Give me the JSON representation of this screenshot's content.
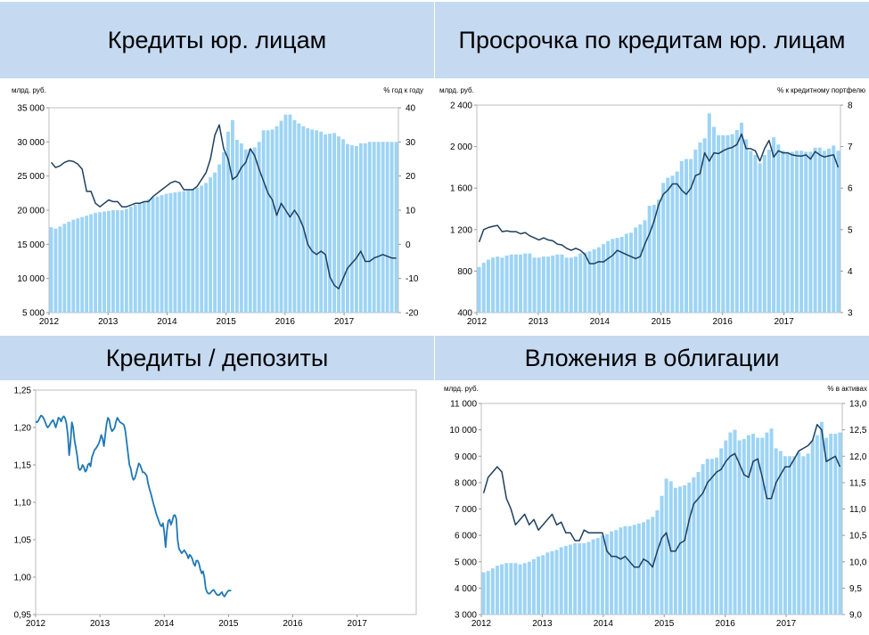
{
  "panels": [
    {
      "title": "Кредиты юр. лицам",
      "chart_data": {
        "type": "bar+line",
        "left_unit": "млрд. руб.",
        "right_unit": "% год к году",
        "x_ticks": [
          "2012",
          "2013",
          "2014",
          "2015",
          "2016",
          "2017"
        ],
        "left_ticks": [
          "5 000",
          "10 000",
          "15 000",
          "20 000",
          "25 000",
          "30 000",
          "35 000"
        ],
        "right_ticks": [
          "-20",
          "-10",
          "0",
          "10",
          "20",
          "30",
          "40"
        ],
        "ylim_left": [
          5000,
          35000
        ],
        "ylim_right": [
          -20,
          40
        ],
        "x_start": 2012.0,
        "x_step": 0.083333,
        "bars": [
          17500,
          17300,
          17600,
          18000,
          18300,
          18600,
          18800,
          19000,
          19200,
          19400,
          19600,
          19700,
          19800,
          19900,
          20000,
          20000,
          20000,
          20200,
          20500,
          20800,
          21100,
          21300,
          21600,
          21900,
          22000,
          22200,
          22400,
          22500,
          22600,
          22700,
          22800,
          22900,
          23100,
          23300,
          23600,
          24000,
          24800,
          25500,
          26700,
          28500,
          31500,
          33200,
          30300,
          29800,
          28900,
          29000,
          29200,
          30000,
          31700,
          31700,
          31800,
          32300,
          33100,
          34000,
          34000,
          33200,
          32700,
          32300,
          32000,
          31800,
          31700,
          31500,
          31100,
          31200,
          31300,
          30800,
          30400,
          29700,
          29500,
          29400,
          29800,
          29800,
          30000,
          30000,
          30000,
          30000,
          30000,
          30000,
          30000
        ],
        "line": [
          24,
          22.5,
          23,
          24,
          24.5,
          24.3,
          23.5,
          22,
          15.5,
          15.5,
          12,
          11,
          12,
          13,
          12.5,
          12.5,
          11,
          11,
          11.5,
          12,
          12,
          12.5,
          12.5,
          14,
          15,
          16,
          17,
          18,
          18.5,
          18,
          16,
          16,
          16,
          17,
          19,
          21,
          25,
          32,
          35,
          28,
          25,
          19,
          20,
          22.5,
          24,
          28,
          26,
          22,
          18.5,
          15,
          13,
          8.5,
          12,
          10,
          8,
          10,
          8,
          5,
          0,
          -2,
          -3,
          -2,
          -3,
          -9.5,
          -12,
          -13,
          -10,
          -7,
          -5.5,
          -4,
          -2,
          -5,
          -5,
          -4,
          -3.5,
          -3,
          -3.5,
          -4,
          -4
        ],
        "bar_color": "#9dd4f5",
        "line_color": "#1f3f5f"
      }
    },
    {
      "title": "Просрочка по кредитам юр. лицам",
      "chart_data": {
        "type": "bar+line",
        "left_unit": "млрд. руб.",
        "right_unit": "% к кредитному портфелю",
        "x_ticks": [
          "2012",
          "2013",
          "2014",
          "2015",
          "2016",
          "2017"
        ],
        "left_ticks": [
          "400",
          "800",
          "1 200",
          "1 600",
          "2 000",
          "2 400"
        ],
        "right_ticks": [
          "3",
          "4",
          "5",
          "6",
          "7",
          "8"
        ],
        "ylim_left": [
          400,
          2400
        ],
        "ylim_right": [
          3,
          8
        ],
        "x_start": 2012.0,
        "x_step": 0.083333,
        "bars": [
          840,
          880,
          910,
          930,
          940,
          930,
          950,
          960,
          960,
          960,
          970,
          970,
          930,
          930,
          940,
          940,
          950,
          960,
          960,
          930,
          930,
          940,
          970,
          980,
          990,
          1010,
          1030,
          1060,
          1090,
          1110,
          1120,
          1130,
          1160,
          1170,
          1220,
          1250,
          1290,
          1430,
          1440,
          1490,
          1650,
          1700,
          1720,
          1760,
          1860,
          1880,
          1880,
          1970,
          2040,
          2080,
          2320,
          2190,
          2110,
          2110,
          2110,
          2120,
          2160,
          2230,
          2070,
          1960,
          1920,
          1840,
          1920,
          1970,
          2090,
          2020,
          1960,
          1950,
          1950,
          1960,
          1960,
          1950,
          1950,
          1990,
          1990,
          1960,
          1980,
          2010,
          1960
        ],
        "line": [
          4.7,
          5,
          5.05,
          5.08,
          5.1,
          4.95,
          4.97,
          4.95,
          4.95,
          4.9,
          4.93,
          4.85,
          4.8,
          4.75,
          4.8,
          4.75,
          4.73,
          4.65,
          4.63,
          4.55,
          4.5,
          4.55,
          4.5,
          4.4,
          4.18,
          4.18,
          4.23,
          4.22,
          4.3,
          4.38,
          4.5,
          4.45,
          4.4,
          4.35,
          4.3,
          4.35,
          4.65,
          4.9,
          5.2,
          5.6,
          5.85,
          5.95,
          6.1,
          6.1,
          5.95,
          5.85,
          6.0,
          6.3,
          6.35,
          6.85,
          6.65,
          6.85,
          6.83,
          6.9,
          6.95,
          6.98,
          7.05,
          7.3,
          6.95,
          6.95,
          6.9,
          6.65,
          6.95,
          7.15,
          6.75,
          6.9,
          6.85,
          6.85,
          6.8,
          6.78,
          6.77,
          6.8,
          6.7,
          6.88,
          6.8,
          6.75,
          6.78,
          6.8,
          6.5
        ],
        "bar_color": "#9dd4f5",
        "line_color": "#1f3f5f"
      }
    },
    {
      "title": "Кредиты / депозиты",
      "chart_data": {
        "type": "line",
        "x_ticks": [
          "2012",
          "2013",
          "2014",
          "2015",
          "2016",
          "2017"
        ],
        "left_ticks": [
          "0,95",
          "1,00",
          "1,05",
          "1,10",
          "1,15",
          "1,20",
          "1,25"
        ],
        "ylim_left": [
          0.95,
          1.25
        ],
        "x_start": 2012.0,
        "x_step": 0.020833,
        "line": [
          1.208,
          1.207,
          1.209,
          1.213,
          1.216,
          1.215,
          1.212,
          1.208,
          1.203,
          1.2,
          1.202,
          1.205,
          1.208,
          1.21,
          1.206,
          1.2,
          1.206,
          1.213,
          1.212,
          1.208,
          1.213,
          1.215,
          1.212,
          1.205,
          1.19,
          1.163,
          1.18,
          1.207,
          1.2,
          1.183,
          1.173,
          1.162,
          1.146,
          1.143,
          1.145,
          1.15,
          1.147,
          1.141,
          1.143,
          1.15,
          1.152,
          1.148,
          1.16,
          1.165,
          1.17,
          1.172,
          1.175,
          1.178,
          1.183,
          1.19,
          1.185,
          1.175,
          1.19,
          1.205,
          1.213,
          1.21,
          1.2,
          1.195,
          1.197,
          1.2,
          1.208,
          1.213,
          1.21,
          1.207,
          1.206,
          1.205,
          1.203,
          1.195,
          1.18,
          1.165,
          1.15,
          1.145,
          1.135,
          1.13,
          1.132,
          1.138,
          1.145,
          1.152,
          1.15,
          1.145,
          1.14,
          1.14,
          1.138,
          1.135,
          1.125,
          1.118,
          1.112,
          1.105,
          1.098,
          1.092,
          1.085,
          1.08,
          1.075,
          1.07,
          1.068,
          1.072,
          1.06,
          1.04,
          1.062,
          1.075,
          1.077,
          1.07,
          1.075,
          1.082,
          1.083,
          1.078,
          1.05,
          1.038,
          1.035,
          1.032,
          1.034,
          1.036,
          1.033,
          1.03,
          1.025,
          1.03,
          1.028,
          1.024,
          1.018,
          1.015,
          1.022,
          1.022,
          1.018,
          1.01,
          1.005,
          1.008,
          1.0,
          0.985,
          0.98,
          0.978,
          0.978,
          0.98,
          0.982,
          0.983,
          0.98,
          0.977,
          0.976,
          0.976,
          0.978,
          0.98,
          0.976,
          0.974,
          0.977,
          0.98,
          0.982,
          0.982,
          0.982
        ],
        "line_color": "#1f78b4"
      }
    },
    {
      "title": "Вложения в облигации",
      "chart_data": {
        "type": "bar+line",
        "left_unit": "млрд. руб.",
        "right_unit": "% в активах",
        "x_ticks": [
          "2012",
          "2013",
          "2014",
          "2015",
          "2016",
          "2017"
        ],
        "left_ticks": [
          "3 000",
          "4 000",
          "5 000",
          "6 000",
          "7 000",
          "8 000",
          "9 000",
          "10 000",
          "11 000"
        ],
        "right_ticks": [
          "9,0",
          "9,5",
          "10,0",
          "10,5",
          "11,0",
          "11,5",
          "12,0",
          "12,5",
          "13,0"
        ],
        "ylim_left": [
          3000,
          11000
        ],
        "ylim_right": [
          9.0,
          13.0
        ],
        "x_start": 2012.0,
        "x_step": 0.083333,
        "bars": [
          4600,
          4650,
          4750,
          4850,
          4900,
          4950,
          4950,
          4950,
          4900,
          4950,
          5000,
          5100,
          5200,
          5250,
          5350,
          5400,
          5450,
          5550,
          5600,
          5650,
          5700,
          5700,
          5700,
          5750,
          5850,
          5900,
          6000,
          6050,
          6150,
          6200,
          6300,
          6350,
          6350,
          6400,
          6450,
          6500,
          6600,
          6700,
          6950,
          7500,
          8150,
          8050,
          7800,
          7850,
          7900,
          8000,
          8200,
          8400,
          8700,
          8900,
          8900,
          8950,
          9300,
          9600,
          9900,
          10000,
          9600,
          9650,
          9800,
          9850,
          9700,
          9700,
          9900,
          10050,
          9300,
          9200,
          9000,
          9000,
          9000,
          9150,
          9000,
          9100,
          9600,
          9800,
          10300,
          9700,
          9850,
          9850,
          9900
        ],
        "line": [
          11.3,
          11.6,
          11.7,
          11.8,
          11.7,
          11.2,
          11.0,
          10.7,
          10.8,
          10.9,
          10.7,
          10.8,
          10.6,
          10.7,
          10.8,
          10.9,
          10.7,
          10.75,
          10.55,
          10.55,
          10.4,
          10.4,
          10.6,
          10.55,
          10.55,
          10.55,
          10.55,
          10.2,
          10.1,
          10.1,
          10.05,
          10.1,
          10.0,
          9.9,
          9.9,
          10.05,
          10.0,
          9.9,
          10.2,
          10.45,
          10.55,
          10.2,
          10.2,
          10.35,
          10.4,
          10.8,
          11.1,
          11.2,
          11.3,
          11.5,
          11.6,
          11.7,
          11.75,
          11.9,
          12.0,
          12.05,
          11.85,
          11.65,
          11.6,
          11.9,
          11.95,
          11.6,
          11.2,
          11.2,
          11.5,
          11.65,
          11.8,
          11.8,
          11.95,
          12.1,
          12.15,
          12.2,
          12.3,
          12.6,
          12.5,
          11.9,
          11.95,
          12.0,
          11.8
        ],
        "bar_color": "#9dd4f5",
        "line_color": "#1f3f5f"
      }
    }
  ]
}
